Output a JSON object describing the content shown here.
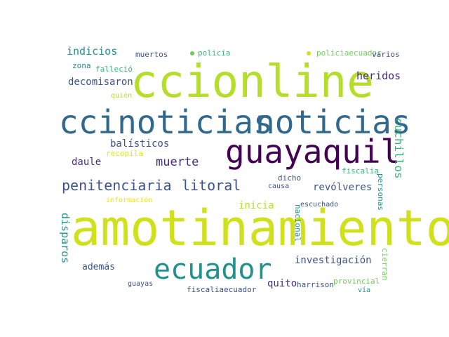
{
  "palette": {
    "green": "#b5de2b",
    "lime": "#d0e11c",
    "yellow": "#e5e419",
    "teal": "#21918c",
    "blue": "#31688e",
    "slate": "#3b528b",
    "purple": "#472d7b",
    "deep": "#440154",
    "sea": "#35b779",
    "mint": "#6ece58"
  },
  "words": [
    {
      "text": "ccionline"
    },
    {
      "text": "amotinamiento"
    },
    {
      "text": "ccinoticias"
    },
    {
      "text": "noticias"
    },
    {
      "text": "guayaquil"
    },
    {
      "text": "ecuador"
    },
    {
      "text": "penitenciaria"
    },
    {
      "text": "litoral"
    },
    {
      "text": "indicios"
    },
    {
      "text": "muertos"
    },
    {
      "text": "policía"
    },
    {
      "text": "policiaecuador"
    },
    {
      "text": "varios"
    },
    {
      "text": "zona"
    },
    {
      "text": "falleció"
    },
    {
      "text": "decomisaron"
    },
    {
      "text": "quién"
    },
    {
      "text": "heridos"
    },
    {
      "text": "balísticos"
    },
    {
      "text": "recopila"
    },
    {
      "text": "daule"
    },
    {
      "text": "muerte"
    },
    {
      "text": "cuchillos"
    },
    {
      "text": "fiscalia"
    },
    {
      "text": "dicho"
    },
    {
      "text": "causa"
    },
    {
      "text": "revólveres"
    },
    {
      "text": "personas"
    },
    {
      "text": "información"
    },
    {
      "text": "inicia"
    },
    {
      "text": "escuchado"
    },
    {
      "text": "nacional"
    },
    {
      "text": "disparos"
    },
    {
      "text": "además"
    },
    {
      "text": "investigación"
    },
    {
      "text": "cierran"
    },
    {
      "text": "guayas"
    },
    {
      "text": "quito"
    },
    {
      "text": "harrison"
    },
    {
      "text": "provincial"
    },
    {
      "text": "vía"
    },
    {
      "text": "fiscaliaecuador"
    }
  ]
}
